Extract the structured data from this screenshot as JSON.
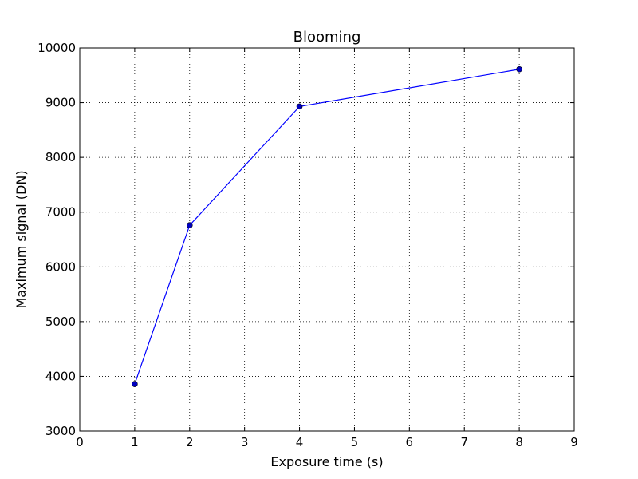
{
  "chart_data": {
    "type": "line",
    "title": "Blooming",
    "xlabel": "Exposure time (s)",
    "ylabel": "Maximum signal (DN)",
    "xlim": [
      0,
      9
    ],
    "ylim": [
      3000,
      10000
    ],
    "xticks": [
      0,
      1,
      2,
      3,
      4,
      5,
      6,
      7,
      8,
      9
    ],
    "yticks": [
      3000,
      4000,
      5000,
      6000,
      7000,
      8000,
      9000,
      10000
    ],
    "grid": true,
    "series": [
      {
        "color": "#0000ff",
        "marker": "circle",
        "x": [
          1,
          2,
          4,
          8
        ],
        "y": [
          3860,
          6760,
          8930,
          9610
        ]
      }
    ]
  }
}
